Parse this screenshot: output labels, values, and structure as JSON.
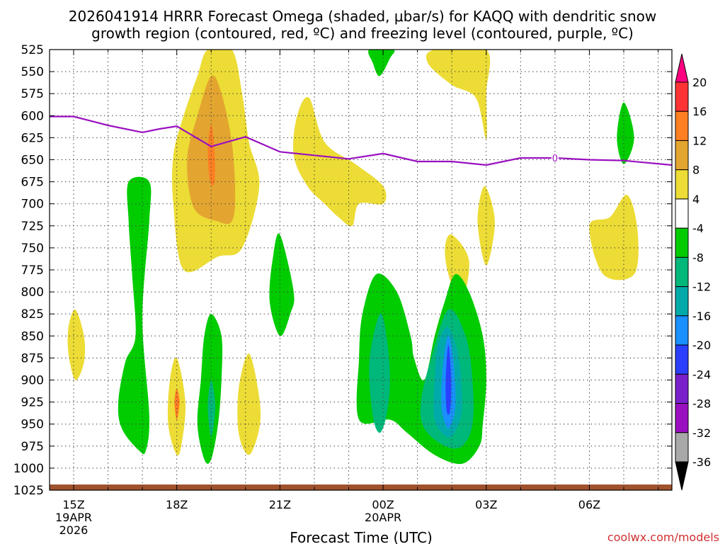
{
  "chart_data": {
    "type": "contour",
    "title_line1": "2026041914 HRRR Forecast Omega (shaded, μbar/s) for KAQQ with dendritic snow",
    "title_line2": "growth region (contoured, red, ºC) and freezing level (contoured, purple, ºC)",
    "xlabel": "Forecast Time (UTC)",
    "ylabel": "",
    "x_range_hours": [
      14.3,
      32.4
    ],
    "y_range_hPa": [
      1025,
      525
    ],
    "y_ticks": [
      "525",
      "550",
      "575",
      "600",
      "625",
      "650",
      "675",
      "700",
      "725",
      "750",
      "775",
      "800",
      "825",
      "850",
      "875",
      "900",
      "925",
      "950",
      "975",
      "1000",
      "1025"
    ],
    "x_ticks": [
      {
        "label": "15Z",
        "sub1": "19APR",
        "sub2": "2026",
        "hour": 15
      },
      {
        "label": "18Z",
        "sub1": "",
        "sub2": "",
        "hour": 18
      },
      {
        "label": "21Z",
        "sub1": "",
        "sub2": "",
        "hour": 21
      },
      {
        "label": "00Z",
        "sub1": "20APR",
        "sub2": "",
        "hour": 24
      },
      {
        "label": "03Z",
        "sub1": "",
        "sub2": "",
        "hour": 27
      },
      {
        "label": "06Z",
        "sub1": "",
        "sub2": "",
        "hour": 30
      }
    ],
    "colorbar": {
      "labels": [
        "20",
        "16",
        "12",
        "8",
        "4",
        "-4",
        "-8",
        "-12",
        "-16",
        "-20",
        "-24",
        "-28",
        "-32",
        "-36"
      ],
      "colors": [
        "#fe0080",
        "#ff3333",
        "#ff7f22",
        "#e3a530",
        "#ecdc35",
        "#ffffff",
        "#00cc00",
        "#00b87a",
        "#00aaaa",
        "#1a8fff",
        "#2a3fff",
        "#7a1fcc",
        "#9a10c0",
        "#a8a8a8",
        "#000000"
      ]
    },
    "freezing_level": {
      "label": "0",
      "points": [
        [
          14.3,
          601
        ],
        [
          15,
          601
        ],
        [
          16,
          611
        ],
        [
          17,
          619
        ],
        [
          17.5,
          615
        ],
        [
          18,
          612
        ],
        [
          19,
          635
        ],
        [
          20,
          624
        ],
        [
          21,
          641
        ],
        [
          22,
          645
        ],
        [
          23,
          649
        ],
        [
          24,
          643
        ],
        [
          25,
          652
        ],
        [
          26,
          652
        ],
        [
          27,
          656
        ],
        [
          28,
          648
        ],
        [
          29,
          648
        ],
        [
          30,
          650
        ],
        [
          31,
          651
        ],
        [
          32.4,
          656
        ]
      ]
    },
    "omega_regions": [
      {
        "color": "#ecdc35",
        "points": [
          [
            18.9,
            525
          ],
          [
            19.6,
            525
          ],
          [
            19.9,
            575
          ],
          [
            20.1,
            630
          ],
          [
            20.4,
            680
          ],
          [
            19.9,
            750
          ],
          [
            19.2,
            760
          ],
          [
            18.2,
            775
          ],
          [
            17.9,
            700
          ],
          [
            17.9,
            645
          ],
          [
            18.2,
            600
          ],
          [
            18.6,
            555
          ]
        ]
      },
      {
        "color": "#e3a530",
        "points": [
          [
            19.0,
            555
          ],
          [
            19.3,
            575
          ],
          [
            19.6,
            630
          ],
          [
            19.7,
            690
          ],
          [
            19.6,
            720
          ],
          [
            19.2,
            720
          ],
          [
            18.5,
            705
          ],
          [
            18.3,
            650
          ],
          [
            18.6,
            600
          ]
        ]
      },
      {
        "color": "#ff7f22",
        "points": [
          [
            19.0,
            610
          ],
          [
            19.1,
            640
          ],
          [
            19.1,
            675
          ],
          [
            18.97,
            675
          ],
          [
            18.9,
            640
          ]
        ]
      },
      {
        "color": "#ecdc35",
        "points": [
          [
            21.85,
            580
          ],
          [
            22.3,
            630
          ],
          [
            23.2,
            655
          ],
          [
            24.0,
            680
          ],
          [
            24.0,
            700
          ],
          [
            23.3,
            700
          ],
          [
            23.1,
            725
          ],
          [
            22.7,
            715
          ],
          [
            22.3,
            700
          ],
          [
            21.8,
            680
          ],
          [
            21.4,
            645
          ],
          [
            21.5,
            600
          ]
        ]
      },
      {
        "color": "#ecdc35",
        "points": [
          [
            25.5,
            525
          ],
          [
            27.0,
            525
          ],
          [
            27.0,
            575
          ],
          [
            27.0,
            627
          ],
          [
            26.7,
            580
          ],
          [
            26.0,
            565
          ],
          [
            25.3,
            540
          ]
        ]
      },
      {
        "color": "#ecdc35",
        "points": [
          [
            26.0,
            735
          ],
          [
            26.5,
            765
          ],
          [
            26.25,
            815
          ],
          [
            25.9,
            780
          ],
          [
            25.8,
            750
          ]
        ]
      },
      {
        "color": "#ecdc35",
        "points": [
          [
            26.95,
            680
          ],
          [
            27.25,
            720
          ],
          [
            27.0,
            770
          ],
          [
            26.75,
            720
          ]
        ]
      },
      {
        "color": "#ecdc35",
        "points": [
          [
            31.1,
            690
          ],
          [
            31.4,
            730
          ],
          [
            31.3,
            780
          ],
          [
            30.4,
            780
          ],
          [
            30.0,
            725
          ],
          [
            30.6,
            715
          ]
        ]
      },
      {
        "color": "#ecdc35",
        "points": [
          [
            15.05,
            820
          ],
          [
            15.3,
            850
          ],
          [
            15.3,
            880
          ],
          [
            15.05,
            900
          ],
          [
            14.85,
            870
          ],
          [
            14.85,
            840
          ]
        ]
      },
      {
        "color": "#ecdc35",
        "points": [
          [
            18.0,
            875
          ],
          [
            18.25,
            925
          ],
          [
            18.15,
            970
          ],
          [
            18.0,
            985
          ],
          [
            17.75,
            950
          ],
          [
            17.8,
            900
          ]
        ]
      },
      {
        "color": "#ff7f22",
        "points": [
          [
            18.0,
            910
          ],
          [
            18.08,
            925
          ],
          [
            18.0,
            945
          ],
          [
            17.93,
            925
          ]
        ]
      },
      {
        "color": "#ecdc35",
        "points": [
          [
            20.1,
            870
          ],
          [
            20.4,
            920
          ],
          [
            20.4,
            955
          ],
          [
            20.1,
            985
          ],
          [
            19.8,
            960
          ],
          [
            19.8,
            910
          ]
        ]
      },
      {
        "color": "#00cc00",
        "points": [
          [
            16.6,
            675
          ],
          [
            17.2,
            675
          ],
          [
            17.2,
            720
          ],
          [
            17.0,
            830
          ],
          [
            17.2,
            940
          ],
          [
            17.1,
            980
          ],
          [
            16.9,
            980
          ],
          [
            16.4,
            955
          ],
          [
            16.3,
            925
          ],
          [
            16.5,
            880
          ],
          [
            16.8,
            850
          ],
          [
            16.7,
            780
          ],
          [
            16.6,
            720
          ]
        ]
      },
      {
        "color": "#00cc00",
        "points": [
          [
            19.0,
            825
          ],
          [
            19.3,
            850
          ],
          [
            19.3,
            900
          ],
          [
            19.2,
            950
          ],
          [
            19.0,
            990
          ],
          [
            18.8,
            990
          ],
          [
            18.6,
            950
          ],
          [
            18.7,
            900
          ],
          [
            18.8,
            850
          ]
        ]
      },
      {
        "color": "#00b87a",
        "points": [
          [
            19.0,
            900
          ],
          [
            19.12,
            930
          ],
          [
            19.0,
            965
          ],
          [
            18.9,
            930
          ]
        ]
      },
      {
        "color": "#00cc00",
        "points": [
          [
            21.0,
            735
          ],
          [
            21.4,
            800
          ],
          [
            21.3,
            825
          ],
          [
            21.0,
            850
          ],
          [
            20.7,
            810
          ],
          [
            20.8,
            760
          ]
        ]
      },
      {
        "color": "#00cc00",
        "points": [
          [
            23.6,
            525
          ],
          [
            24.3,
            525
          ],
          [
            24.2,
            535
          ],
          [
            23.9,
            555
          ],
          [
            23.7,
            540
          ]
        ]
      },
      {
        "color": "#00cc00",
        "points": [
          [
            31.0,
            585
          ],
          [
            31.3,
            625
          ],
          [
            31.0,
            655
          ],
          [
            30.8,
            625
          ]
        ]
      },
      {
        "color": "#00cc00",
        "points": [
          [
            23.8,
            780
          ],
          [
            24.4,
            800
          ],
          [
            24.8,
            850
          ],
          [
            24.9,
            875
          ],
          [
            25.2,
            900
          ],
          [
            25.5,
            850
          ],
          [
            25.8,
            810
          ],
          [
            26.1,
            780
          ],
          [
            26.5,
            800
          ],
          [
            26.9,
            850
          ],
          [
            27.0,
            900
          ],
          [
            26.9,
            950
          ],
          [
            26.8,
            975
          ],
          [
            26.3,
            995
          ],
          [
            25.5,
            985
          ],
          [
            24.7,
            960
          ],
          [
            24.2,
            945
          ],
          [
            23.3,
            945
          ],
          [
            23.3,
            875
          ],
          [
            23.4,
            825
          ]
        ]
      },
      {
        "color": "#00b87a",
        "points": [
          [
            23.9,
            825
          ],
          [
            24.1,
            850
          ],
          [
            24.2,
            900
          ],
          [
            24.1,
            940
          ],
          [
            23.9,
            960
          ],
          [
            23.7,
            940
          ],
          [
            23.6,
            880
          ]
        ]
      },
      {
        "color": "#00b87a",
        "points": [
          [
            25.9,
            820
          ],
          [
            26.4,
            850
          ],
          [
            26.6,
            900
          ],
          [
            26.6,
            950
          ],
          [
            26.3,
            975
          ],
          [
            25.8,
            975
          ],
          [
            25.2,
            955
          ],
          [
            25.1,
            925
          ],
          [
            25.4,
            875
          ]
        ]
      },
      {
        "color": "#00aaaa",
        "points": [
          [
            25.9,
            840
          ],
          [
            26.2,
            875
          ],
          [
            26.3,
            925
          ],
          [
            26.2,
            950
          ],
          [
            25.9,
            965
          ],
          [
            25.5,
            945
          ],
          [
            25.5,
            900
          ],
          [
            25.6,
            860
          ]
        ]
      },
      {
        "color": "#1a8fff",
        "points": [
          [
            25.9,
            850
          ],
          [
            26.05,
            880
          ],
          [
            26.1,
            930
          ],
          [
            25.9,
            955
          ],
          [
            25.7,
            930
          ],
          [
            25.75,
            880
          ]
        ]
      },
      {
        "color": "#2a3fff",
        "points": [
          [
            25.9,
            860
          ],
          [
            25.98,
            900
          ],
          [
            25.95,
            935
          ],
          [
            25.85,
            935
          ],
          [
            25.82,
            900
          ]
        ]
      }
    ],
    "credit": "coolwx.com/models"
  }
}
